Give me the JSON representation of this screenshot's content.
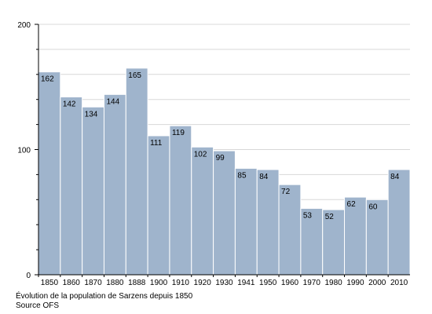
{
  "chart_data": {
    "type": "bar",
    "categories": [
      "1850",
      "1860",
      "1870",
      "1880",
      "1888",
      "1900",
      "1910",
      "1920",
      "1930",
      "1941",
      "1950",
      "1960",
      "1970",
      "1980",
      "1990",
      "2000",
      "2010"
    ],
    "values": [
      162,
      142,
      134,
      144,
      165,
      111,
      119,
      102,
      99,
      85,
      84,
      72,
      53,
      52,
      62,
      60,
      84
    ],
    "ylim": [
      0,
      200
    ],
    "yticks": [
      0,
      100,
      200
    ],
    "grid": true,
    "bar_color": "#9fb4cc",
    "bar_edge_color": "#ffffff",
    "title": "",
    "xlabel": "",
    "ylabel": ""
  },
  "caption": {
    "line1": "Évolution de la population de Sarzens depuis 1850",
    "line2": "Source OFS"
  }
}
